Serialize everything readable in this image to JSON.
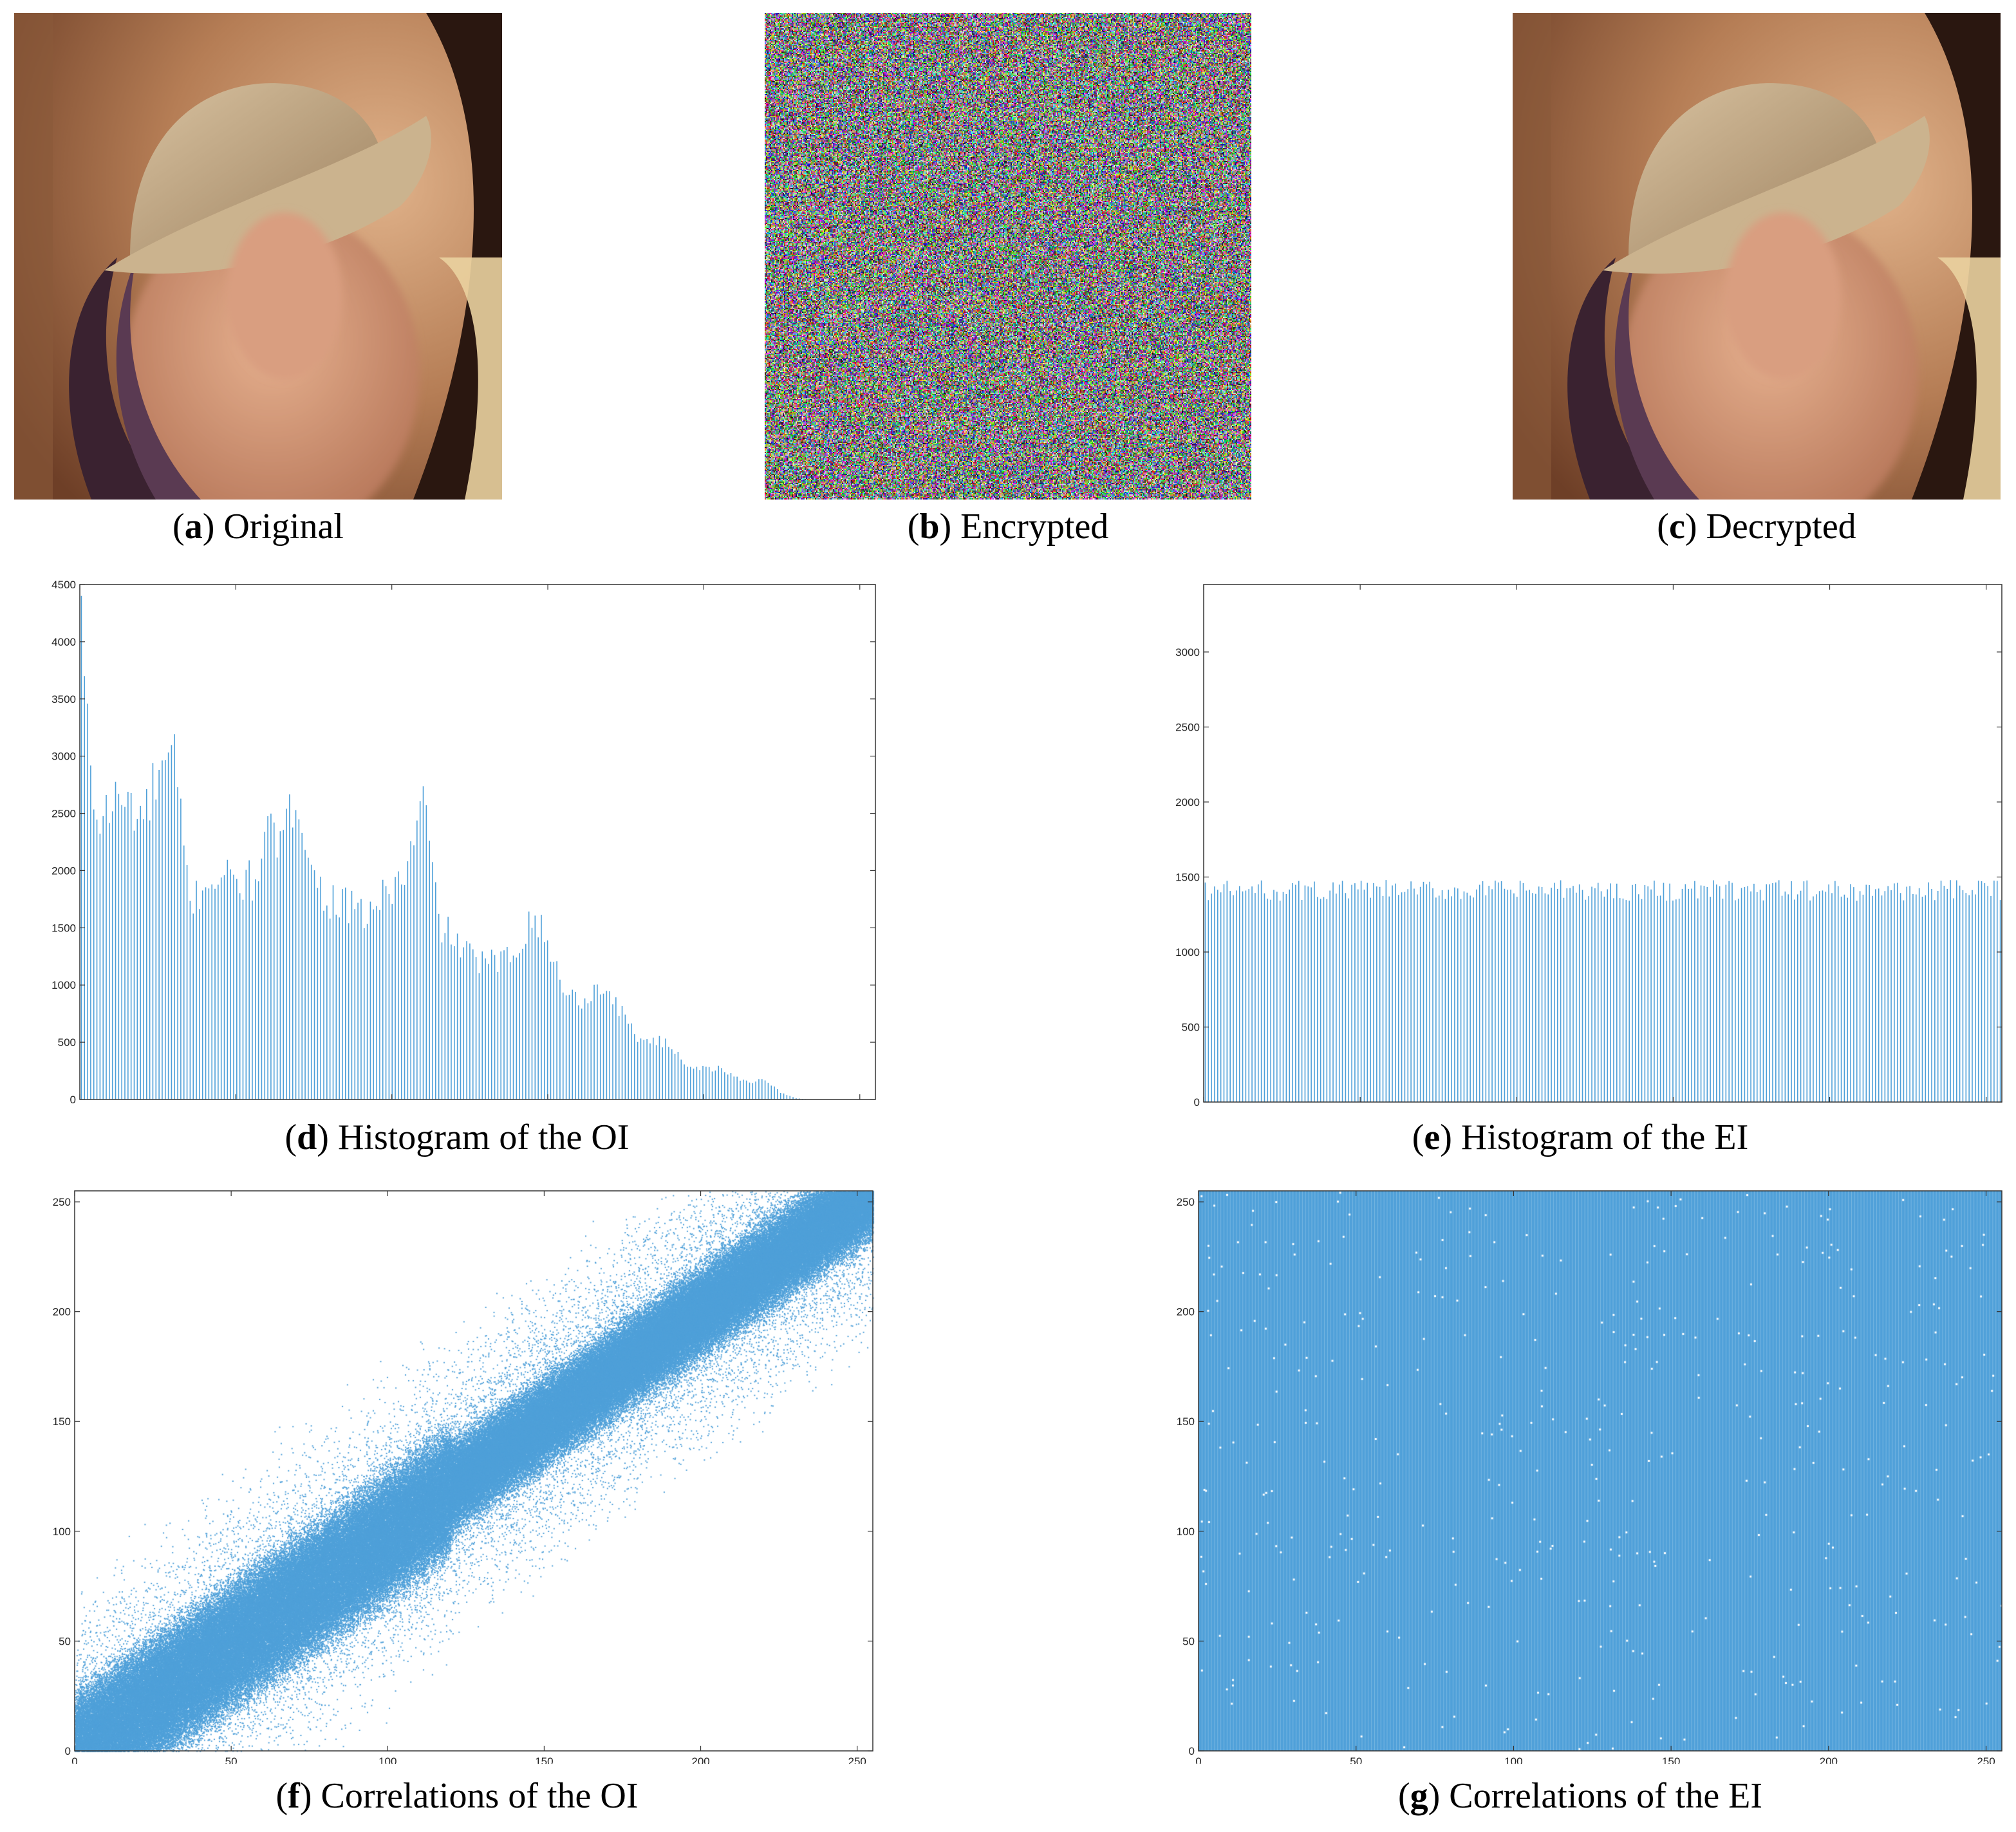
{
  "figure": {
    "panels": [
      {
        "id": "a",
        "letter": "a",
        "title": "Original"
      },
      {
        "id": "b",
        "letter": "b",
        "title": "Encrypted"
      },
      {
        "id": "c",
        "letter": "c",
        "title": "Decrypted"
      },
      {
        "id": "d",
        "letter": "d",
        "title": "Histogram of the OI"
      },
      {
        "id": "e",
        "letter": "e",
        "title": "Histogram of the EI"
      },
      {
        "id": "f",
        "letter": "f",
        "title": "Correlations of the OI"
      },
      {
        "id": "g",
        "letter": "g",
        "title": "Correlations of the EI"
      }
    ]
  },
  "colors": {
    "accent": "#4fa0d9",
    "axis": "#333333"
  },
  "chart_data": [
    {
      "id": "d",
      "type": "bar",
      "title": "Histogram of the OI",
      "xlim": [
        0,
        255
      ],
      "ylim": [
        0,
        4500
      ],
      "yticks": [
        0,
        500,
        1000,
        1500,
        2000,
        2500,
        3000,
        3500,
        4000,
        4500
      ],
      "grid": false,
      "x_sample": [
        0,
        5,
        10,
        15,
        20,
        25,
        30,
        35,
        40,
        45,
        50,
        55,
        60,
        65,
        70,
        75,
        80,
        85,
        90,
        95,
        100,
        105,
        110,
        115,
        120,
        125,
        130,
        135,
        140,
        145,
        150,
        155,
        160,
        165,
        170,
        175,
        180,
        185,
        190,
        195,
        200,
        205,
        210,
        215,
        220,
        225,
        230,
        235,
        240,
        245,
        250,
        255
      ],
      "values_sample": [
        3800,
        2400,
        2600,
        2600,
        2450,
        2850,
        2950,
        1700,
        1900,
        1950,
        1900,
        1900,
        2300,
        2250,
        2700,
        1900,
        1750,
        1700,
        1600,
        1700,
        1850,
        2000,
        2650,
        1550,
        1400,
        1250,
        1200,
        1200,
        1300,
        1650,
        1350,
        1000,
        850,
        950,
        950,
        700,
        520,
        520,
        460,
        300,
        270,
        270,
        200,
        150,
        180,
        60,
        10,
        0,
        0,
        0,
        0,
        0
      ]
    },
    {
      "id": "e",
      "type": "bar",
      "title": "Histogram of the EI",
      "xlim": [
        0,
        255
      ],
      "ylim": [
        0,
        3450
      ],
      "yticks": [
        0,
        500,
        1000,
        1500,
        2000,
        2500,
        3000
      ],
      "grid": false,
      "values_mean": 1400,
      "values_range": [
        1340,
        1480
      ]
    },
    {
      "id": "f",
      "type": "scatter",
      "title": "Correlations of the OI",
      "xlim": [
        0,
        255
      ],
      "ylim": [
        0,
        255
      ],
      "xticks": [
        0,
        50,
        100,
        150,
        200,
        250
      ],
      "yticks": [
        0,
        50,
        100,
        150,
        200,
        250
      ],
      "trend": "strong positive correlation along the diagonal"
    },
    {
      "id": "g",
      "type": "scatter",
      "title": "Correlations of the EI",
      "xlim": [
        0,
        255
      ],
      "ylim": [
        0,
        255
      ],
      "xticks": [
        0,
        50,
        100,
        150,
        200,
        250
      ],
      "yticks": [
        0,
        50,
        100,
        150,
        200,
        250
      ],
      "trend": "uniform distribution filling the whole plane"
    }
  ]
}
